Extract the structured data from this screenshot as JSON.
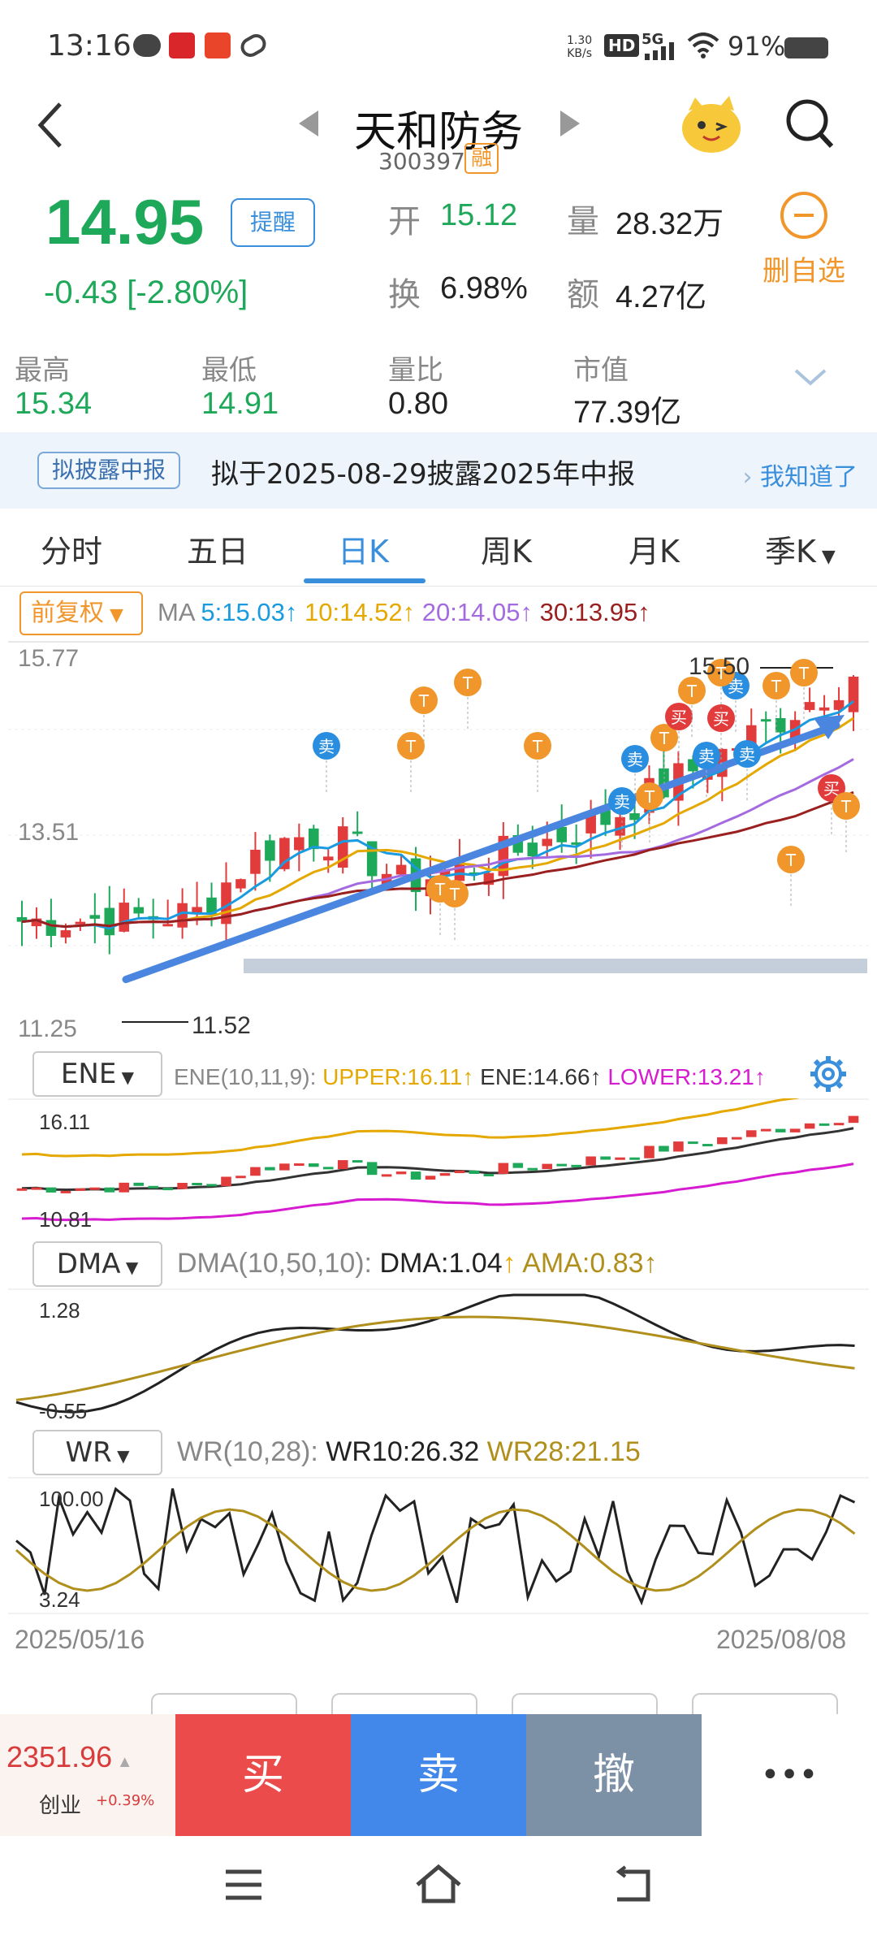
{
  "status_bar": {
    "time": "13:16",
    "net_speed_value": "1.30",
    "net_speed_unit": "KB/s",
    "hd": "HD",
    "network": "5G",
    "battery": "91%"
  },
  "header": {
    "stock_name": "天和防务",
    "stock_code": "300397",
    "margin_badge": "融"
  },
  "quote": {
    "price": "14.95",
    "change": "-0.43  [-2.80%]",
    "remind_label": "提醒",
    "open_label": "开",
    "open_value": "15.12",
    "volume_label": "量",
    "volume_value": "28.32万",
    "turnover_label": "换",
    "turnover_value": "6.98%",
    "amount_label": "额",
    "amount_value": "4.27亿",
    "delete_watch_label": "删自选"
  },
  "stats": [
    {
      "label": "最高",
      "value": "15.34"
    },
    {
      "label": "最低",
      "value": "14.91"
    },
    {
      "label": "量比",
      "value": "0.80"
    },
    {
      "label": "市值",
      "value": "77.39亿"
    }
  ],
  "notice": {
    "tag": "拟披露中报",
    "text": "拟于2025-08-29披露2025年中报",
    "ack": "我知道了"
  },
  "tabs": [
    "分时",
    "五日",
    "日K",
    "周K",
    "月K",
    "季K"
  ],
  "active_tab": "日K",
  "ma_bar": {
    "adjust_label": "前复权",
    "ma_title": "MA",
    "ma5": "5:15.03",
    "ma10": "10:14.52",
    "ma20": "20:14.05",
    "ma30": "30:13.95"
  },
  "kline": {
    "y_top": "15.77",
    "y_mid": "13.51",
    "y_bottom": "11.25",
    "high_marker": "15.50",
    "low_marker": "11.52"
  },
  "ene": {
    "name": "ENE",
    "params": "ENE(10,11,9):",
    "upper": "UPPER:16.11",
    "ene": "ENE:14.66",
    "lower": "LOWER:13.21",
    "y_top": "16.11",
    "y_bottom": "10.81"
  },
  "dma": {
    "name": "DMA",
    "params": "DMA(10,50,10):",
    "dma": "DMA:1.04",
    "ama": "AMA:0.83",
    "y_top": "1.28",
    "y_bottom": "-0.55"
  },
  "wr": {
    "name": "WR",
    "params": "WR(10,28):",
    "wr10": "WR10:26.32",
    "wr28": "WR28:21.15",
    "y_top": "100.00",
    "y_bottom": "3.24"
  },
  "x_axis": {
    "start": "2025/05/16",
    "end": "2025/08/08"
  },
  "index_ticker": {
    "value": "2351.96",
    "name": "创业",
    "pct": "+0.39%"
  },
  "trade_buttons": {
    "buy": "买",
    "sell": "卖",
    "cancel": "撤",
    "more": "•••"
  },
  "signal_labels": {
    "T": "T",
    "buy": "买",
    "sell": "卖"
  },
  "colors": {
    "up": "#e23b3b",
    "down": "#1ea85a",
    "accent": "#3a8fdc",
    "orange": "#f0962b",
    "ma5": "#1a9be0",
    "ma10": "#e5a800",
    "ma20": "#a46be0",
    "ma30": "#9a1f1f"
  }
}
